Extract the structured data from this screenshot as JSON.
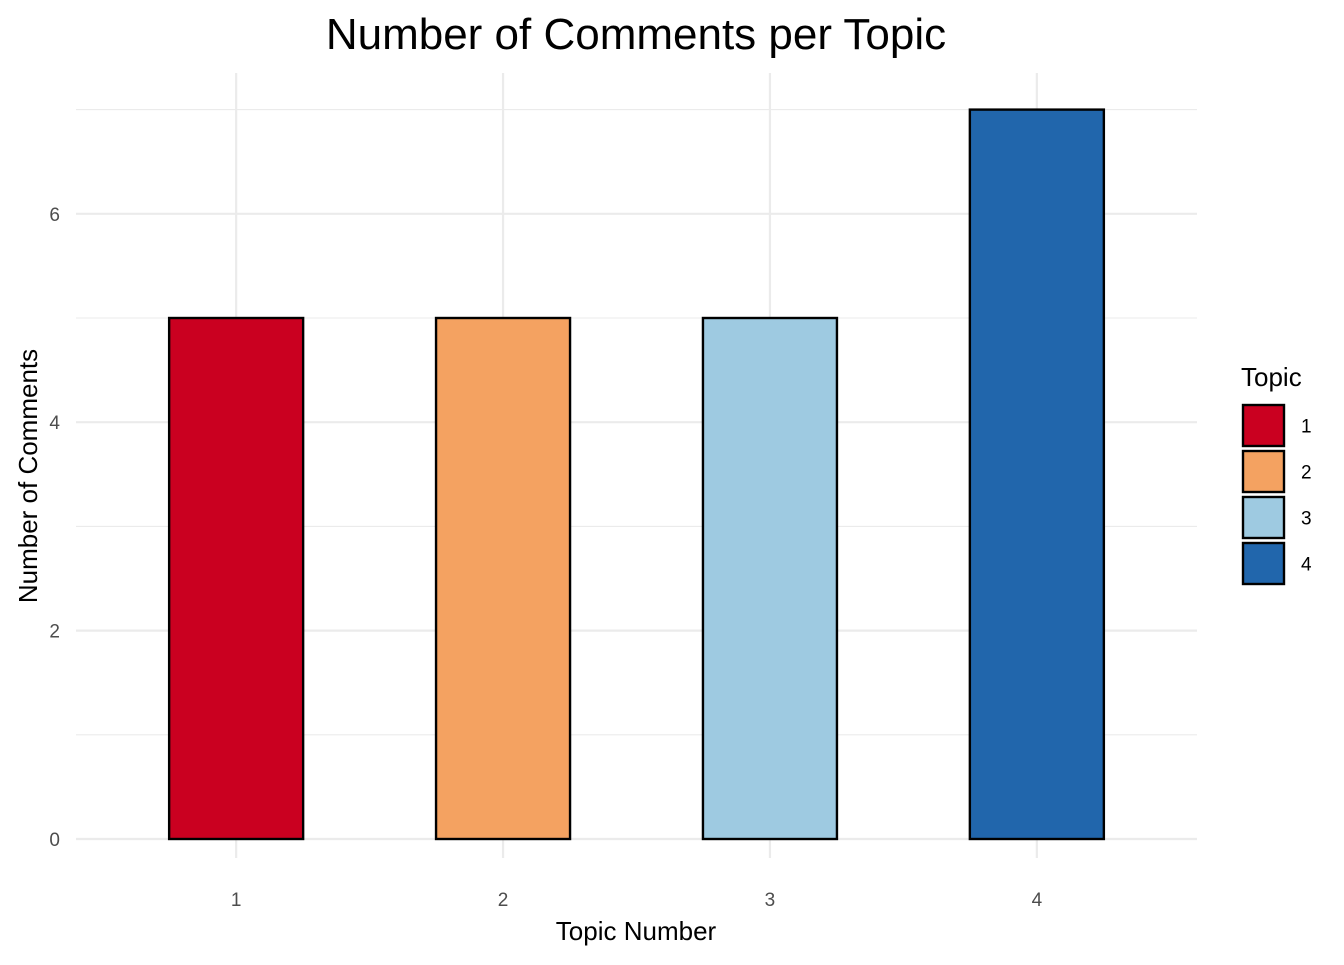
{
  "chart_data": {
    "type": "bar",
    "title": "Number of Comments per Topic",
    "xlabel": "Topic Number",
    "ylabel": "Number of Comments",
    "categories": [
      "1",
      "2",
      "3",
      "4"
    ],
    "values": [
      5,
      5,
      5,
      7
    ],
    "colors": [
      "#ca0020",
      "#f4a261",
      "#9ecae1",
      "#2166ac"
    ],
    "ylim": [
      0,
      7.35
    ],
    "yticks": [
      0,
      2,
      4,
      6
    ],
    "yticks_minor": [
      1,
      3,
      5,
      7
    ],
    "grid": true,
    "legend": {
      "title": "Topic",
      "position": "right",
      "entries": [
        "1",
        "2",
        "3",
        "4"
      ]
    }
  }
}
